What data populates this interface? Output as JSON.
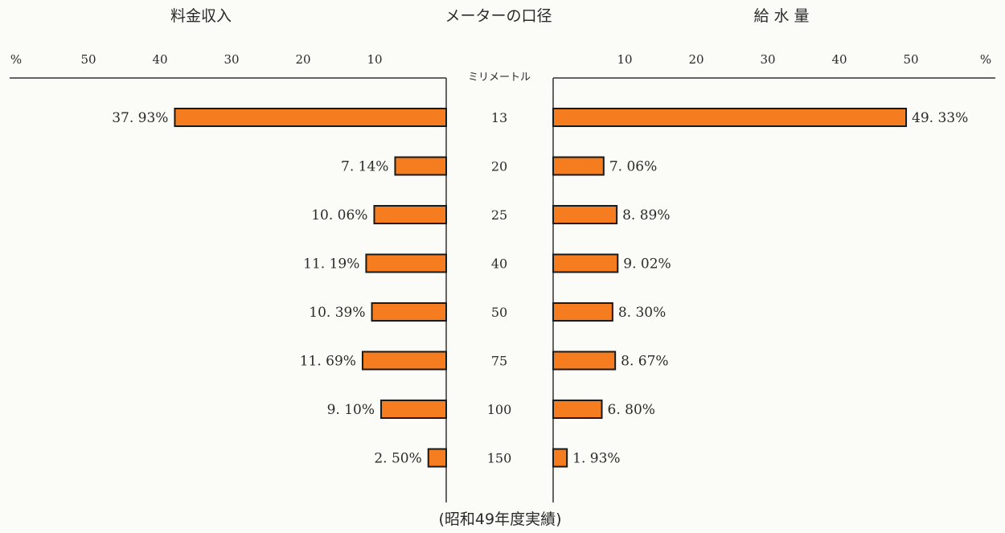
{
  "chart_data": {
    "type": "bar",
    "orientation": "horizontal-butterfly",
    "title_left": "料金収入",
    "title_center": "メーターの口径",
    "title_right": "給 水 量",
    "category_unit": "ミリメートル",
    "percent_symbol": "%",
    "footnote": "(昭和49年度実績)",
    "categories": [
      "13",
      "20",
      "25",
      "40",
      "50",
      "75",
      "100",
      "150"
    ],
    "series": [
      {
        "name": "料金収入",
        "side": "left",
        "values": [
          37.93,
          7.14,
          10.06,
          11.19,
          10.39,
          11.69,
          9.1,
          2.5
        ],
        "labels": [
          "37. 93%",
          "7. 14%",
          "10. 06%",
          "11. 19%",
          "10. 39%",
          "11. 69%",
          "9. 10%",
          "2. 50%"
        ]
      },
      {
        "name": "給 水 量",
        "side": "right",
        "values": [
          49.33,
          7.06,
          8.89,
          9.02,
          8.3,
          8.67,
          6.8,
          1.93
        ],
        "labels": [
          "49. 33%",
          "7. 06%",
          "8. 89%",
          "9. 02%",
          "8. 30%",
          "8. 67%",
          "6. 80%",
          "1. 93%"
        ]
      }
    ],
    "ticks": [
      "10",
      "20",
      "30",
      "40",
      "50"
    ],
    "tick_values": [
      10,
      20,
      30,
      40,
      50
    ],
    "xlim": [
      0,
      60
    ],
    "bar_color": "#f57c1f",
    "grid": false
  }
}
